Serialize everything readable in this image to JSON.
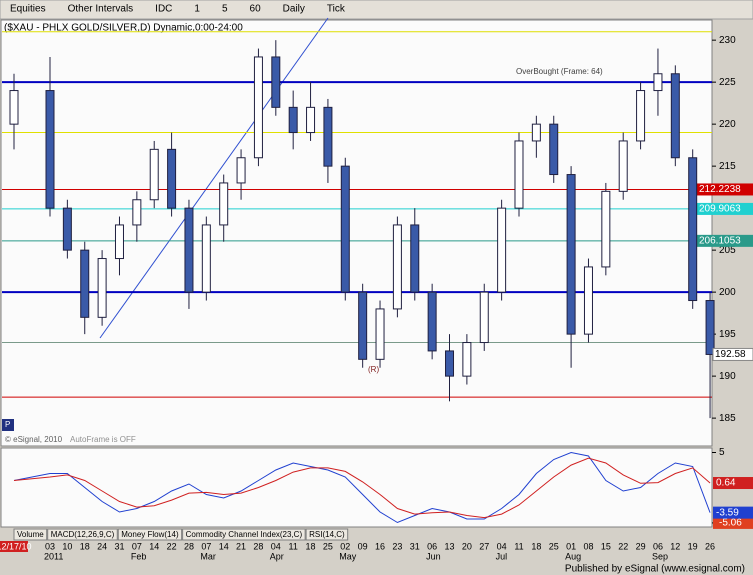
{
  "toolbar": {
    "items": [
      "Equities",
      "Other Intervals",
      "IDC",
      "1",
      "5",
      "60",
      "Daily",
      "Tick"
    ]
  },
  "chart_data": {
    "type": "candlestick",
    "title": "($XAU - PHLX GOLD/SILVER,D) Dynamic,0:00-24:00",
    "x": [
      "12/17/10",
      "03",
      "10",
      "18",
      "24",
      "31",
      "07",
      "14",
      "22",
      "28",
      "07",
      "14",
      "21",
      "28",
      "04",
      "11",
      "18",
      "25",
      "02",
      "09",
      "16",
      "23",
      "31",
      "06",
      "13",
      "20",
      "27",
      "04",
      "11",
      "18",
      "25",
      "01",
      "08",
      "15",
      "22",
      "29",
      "06",
      "12",
      "19",
      "26"
    ],
    "month_labels": [
      null,
      "2011",
      null,
      null,
      null,
      null,
      "Feb",
      null,
      null,
      null,
      "Mar",
      null,
      null,
      null,
      "Apr",
      null,
      null,
      null,
      "May",
      null,
      null,
      null,
      null,
      "Jun",
      null,
      null,
      null,
      "Jul",
      null,
      null,
      null,
      "Aug",
      null,
      null,
      null,
      null,
      "Sep",
      null,
      null,
      null
    ],
    "open": [
      220,
      224,
      210,
      205,
      197,
      204,
      208,
      211,
      217,
      210,
      200,
      208,
      213,
      216,
      228,
      222,
      219,
      222,
      215,
      200,
      192,
      198,
      208,
      200,
      193,
      190,
      194,
      200,
      210,
      218,
      220,
      214,
      195,
      203,
      212,
      218,
      224,
      226,
      216,
      199
    ],
    "high": [
      226,
      228,
      211,
      206,
      205,
      209,
      212,
      218,
      219,
      211,
      209,
      214,
      217,
      229,
      230,
      224,
      225,
      223,
      216,
      201,
      199,
      209,
      210,
      201,
      195,
      195,
      201,
      211,
      219,
      221,
      221,
      215,
      204,
      213,
      219,
      225,
      229,
      227,
      217,
      200
    ],
    "low": [
      217,
      209,
      204,
      195,
      196,
      202,
      206,
      210,
      209,
      198,
      199,
      206,
      211,
      215,
      221,
      217,
      218,
      213,
      199,
      191,
      191,
      197,
      199,
      192,
      187,
      189,
      193,
      199,
      209,
      216,
      213,
      191,
      194,
      202,
      211,
      217,
      221,
      215,
      198,
      185
    ],
    "close": [
      224,
      210,
      205,
      197,
      204,
      208,
      211,
      217,
      210,
      200,
      208,
      213,
      216,
      228,
      222,
      219,
      222,
      215,
      200,
      192,
      198,
      208,
      200,
      193,
      190,
      194,
      200,
      210,
      218,
      220,
      214,
      195,
      203,
      212,
      218,
      224,
      226,
      216,
      199,
      192.58
    ],
    "up_color": "#ffffff",
    "down_color": "#3a5aa8",
    "ylim": [
      181.8,
      232.4
    ],
    "yticks": [
      185,
      190,
      195,
      200,
      205,
      210,
      215,
      220,
      225,
      230
    ],
    "levels": [
      {
        "value": 231,
        "color": "#e0e000"
      },
      {
        "value": 225,
        "color": "#0000c0"
      },
      {
        "value": 219,
        "color": "#e0e000"
      },
      {
        "value": 212.2238,
        "color": "#d00000",
        "label": "212.2238"
      },
      {
        "value": 209.9063,
        "color": "#20d0d0",
        "label": "209.9063"
      },
      {
        "value": 206.1053,
        "color": "#2a9a8a",
        "label": "206.1053"
      },
      {
        "value": 200,
        "color": "#0000c0"
      },
      {
        "value": 194,
        "color": "#7a9a8a"
      },
      {
        "value": 187.5,
        "color": "#d00000"
      }
    ],
    "annotations": [
      "OverBought (Frame: 64)",
      "AutoFrame is OFF",
      "© eSignal, 2010",
      "(R)",
      "P"
    ],
    "indicator": {
      "ylim": [
        -5.5,
        5.5
      ],
      "yticks": [
        5,
        -5.06
      ],
      "series": [
        {
          "name": "MACD",
          "color": "#2040d0",
          "values": [
            1,
            2,
            2,
            0,
            -2,
            -3.5,
            -3,
            -2,
            -0.5,
            0.5,
            -1,
            -1.5,
            -0.5,
            1,
            2.5,
            3.5,
            3,
            2.5,
            1.5,
            -1,
            -3.5,
            -5,
            -4,
            -3,
            -3.5,
            -4.5,
            -4.5,
            -3,
            -1,
            2,
            4,
            5,
            4.5,
            1,
            -0.5,
            0,
            2,
            3.5,
            3,
            -3.59
          ]
        },
        {
          "name": "Signal",
          "color": "#d02020",
          "values": [
            1,
            1.5,
            1.8,
            1,
            -0.5,
            -2,
            -2.8,
            -2.6,
            -1.8,
            -0.8,
            -0.7,
            -1,
            -0.8,
            0,
            1,
            2.2,
            2.8,
            2.8,
            2.3,
            0.8,
            -1,
            -3,
            -3.8,
            -3.6,
            -3.5,
            -4,
            -4.3,
            -3.8,
            -2.5,
            -0.5,
            1.5,
            3.2,
            4.2,
            3.5,
            1.8,
            0.6,
            0.7,
            2,
            2.8,
            0.64
          ]
        }
      ]
    },
    "tabs": [
      "Volume",
      "MACD(12,26,9,C)",
      "Money Flow(14)",
      "Commodity Channel Index(23,C)",
      "RSI(14,C)"
    ]
  },
  "footer": "Published by eSignal (www.esignal.com)"
}
